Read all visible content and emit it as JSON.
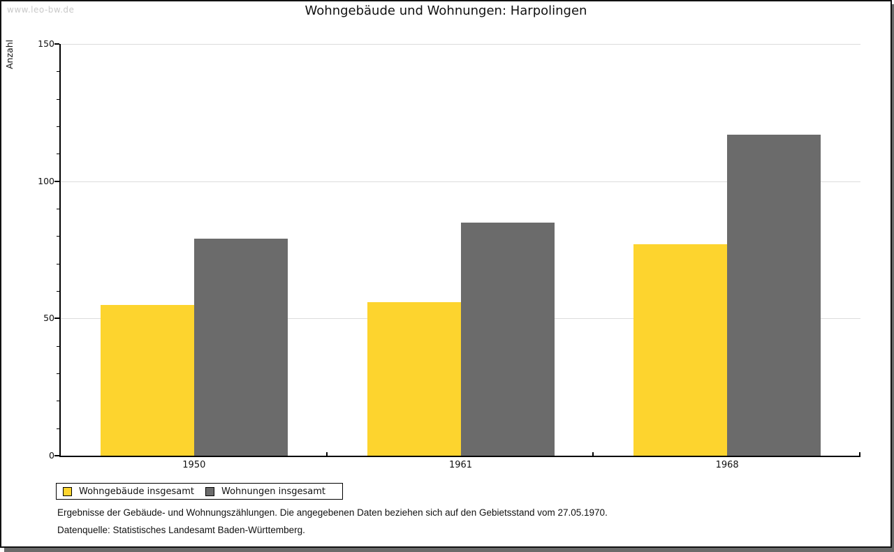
{
  "watermark": "www.leo-bw.de",
  "title": "Wohngebäude und Wohnungen: Harpolingen",
  "chart_data": {
    "type": "bar",
    "title": "Wohngebäude und Wohnungen: Harpolingen",
    "categories": [
      "1950",
      "1961",
      "1968"
    ],
    "series": [
      {
        "name": "Wohngebäude insgesamt",
        "color": "#FDD42E",
        "values": [
          55,
          56,
          77
        ]
      },
      {
        "name": "Wohnungen insgesamt",
        "color": "#6B6B6B",
        "values": [
          79,
          85,
          117
        ]
      }
    ],
    "xlabel": "",
    "ylabel": "Anzahl",
    "ylim": [
      0,
      150
    ],
    "y_major_ticks": [
      0,
      50,
      100,
      150
    ],
    "y_minor_step": 10,
    "grid": "horizontal",
    "grid_color": "#DCDCDC",
    "legend_position": "bottom-left"
  },
  "footer": {
    "line1": "Ergebnisse der Gebäude- und Wohnungszählungen. Die angegebenen Daten beziehen sich auf den Gebietsstand vom 27.05.1970.",
    "line2": "Datenquelle: Statistisches Landesamt Baden-Württemberg."
  }
}
